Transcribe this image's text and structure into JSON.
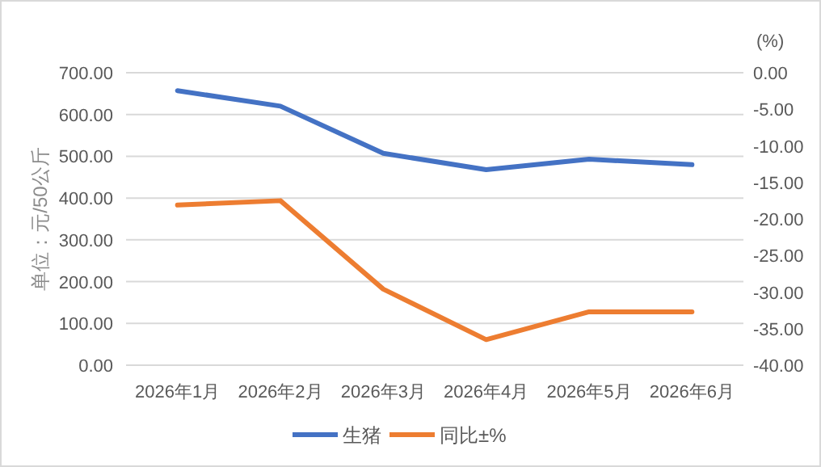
{
  "chart_data": {
    "type": "line",
    "ylabel": "单位：元/50公斤",
    "y2label": "(%)",
    "categories": [
      "2026年1月",
      "2026年2月",
      "2026年3月",
      "2026年4月",
      "2026年5月",
      "2026年6月"
    ],
    "series": [
      {
        "name": "生猪",
        "color": "#4472c4",
        "values": [
          657,
          620,
          507,
          468,
          493,
          480
        ]
      },
      {
        "name": "同比±%",
        "color": "#ed7d31",
        "axis": "y2",
        "values": [
          -18.1,
          -17.5,
          -29.6,
          -36.5,
          -32.7,
          -32.7
        ]
      }
    ],
    "ylim": [
      0,
      700
    ],
    "yticks": [
      {
        "value": 0,
        "label": "0.00"
      },
      {
        "value": 100,
        "label": "100.00"
      },
      {
        "value": 200,
        "label": "200.00"
      },
      {
        "value": 300,
        "label": "300.00"
      },
      {
        "value": 400,
        "label": "400.00"
      },
      {
        "value": 500,
        "label": "500.00"
      },
      {
        "value": 600,
        "label": "600.00"
      },
      {
        "value": 700,
        "label": "700.00"
      }
    ],
    "y2lim": [
      -40,
      0
    ],
    "y2ticks": [
      {
        "value": 0,
        "label": "0.00"
      },
      {
        "value": -5,
        "label": "-5.00"
      },
      {
        "value": -10,
        "label": "-10.00"
      },
      {
        "value": -15,
        "label": "-15.00"
      },
      {
        "value": -20,
        "label": "-20.00"
      },
      {
        "value": -25,
        "label": "-25.00"
      },
      {
        "value": -30,
        "label": "-30.00"
      },
      {
        "value": -35,
        "label": "-35.00"
      },
      {
        "value": -40,
        "label": "-40.00"
      }
    ],
    "grid": "y",
    "legend": "bottom",
    "marker": "none",
    "line_style": "solid"
  }
}
